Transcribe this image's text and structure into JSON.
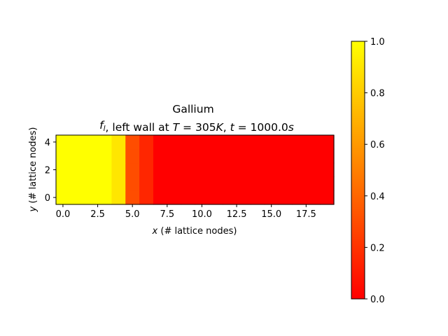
{
  "chart_data": {
    "type": "heatmap",
    "title_line1": "Gallium",
    "title_line2_parts": [
      {
        "t": "f",
        "i": true
      },
      {
        "t": "l",
        "i": true,
        "sub": true
      },
      {
        "t": ", left wall at ",
        "i": false
      },
      {
        "t": "T",
        "i": true
      },
      {
        "t": " = ",
        "i": false
      },
      {
        "t": "305",
        "i": false
      },
      {
        "t": "K",
        "i": true
      },
      {
        "t": ", ",
        "i": false
      },
      {
        "t": "t",
        "i": true
      },
      {
        "t": " = ",
        "i": false
      },
      {
        "t": "1000.0",
        "i": false
      },
      {
        "t": "s",
        "i": true
      }
    ],
    "xlabel_parts": [
      {
        "t": "x",
        "i": true
      },
      {
        "t": " (# lattice nodes)",
        "i": false
      }
    ],
    "ylabel_parts": [
      {
        "t": "y",
        "i": true
      },
      {
        "t": " (# lattice nodes)",
        "i": false
      }
    ],
    "xlim": [
      -0.5,
      19.5
    ],
    "ylim": [
      -0.5,
      4.5
    ],
    "xticks": [
      0.0,
      2.5,
      5.0,
      7.5,
      10.0,
      12.5,
      15.0,
      17.5
    ],
    "xtick_labels": [
      "0.0",
      "2.5",
      "5.0",
      "7.5",
      "10.0",
      "12.5",
      "15.0",
      "17.5"
    ],
    "yticks": [
      0,
      2,
      4
    ],
    "ytick_labels": [
      "0",
      "2",
      "4"
    ],
    "colormap": "autumn",
    "colormap_low": "#ff0000",
    "colormap_high": "#ffff00",
    "clim": [
      0.0,
      1.0
    ],
    "colorbar_ticks": [
      0.0,
      0.2,
      0.4,
      0.6,
      0.8,
      1.0
    ],
    "colorbar_tick_labels": [
      "0.0",
      "0.2",
      "0.4",
      "0.6",
      "0.8",
      "1.0"
    ],
    "column_values": [
      1.0,
      1.0,
      1.0,
      1.0,
      0.9,
      0.3,
      0.15,
      0.0,
      0.0,
      0.0,
      0.0,
      0.0,
      0.0,
      0.0,
      0.0,
      0.0,
      0.0,
      0.0,
      0.0,
      0.0
    ],
    "rows": 5
  }
}
